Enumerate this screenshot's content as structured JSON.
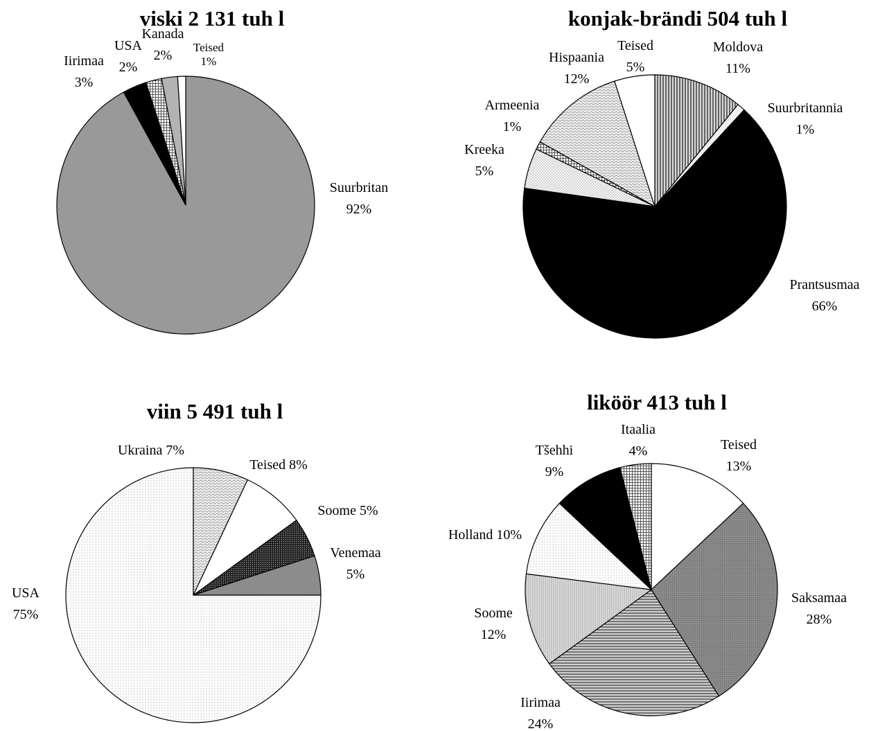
{
  "chart_data": [
    {
      "type": "pie",
      "title": "viski 2 131 tuh l",
      "slices": [
        {
          "lines": [
            "Suurbritan",
            "92%"
          ],
          "value": 92,
          "fill": "#999999"
        },
        {
          "lines": [
            "Iirimaa",
            "3%"
          ],
          "value": 3,
          "fill": "#000000"
        },
        {
          "lines": [
            "USA",
            "2%"
          ],
          "value": 2,
          "fill": "pat-grid"
        },
        {
          "lines": [
            "Kanada",
            "2%"
          ],
          "value": 2,
          "fill": "#b3b3b3"
        },
        {
          "lines": [
            "Teised",
            "1%"
          ],
          "value": 1,
          "fill": "#ffffff"
        }
      ]
    },
    {
      "type": "pie",
      "title": "konjak-brändi 504 tuh l",
      "slices": [
        {
          "lines": [
            "Moldova",
            "11%"
          ],
          "value": 11,
          "fill": "pat-vstripe"
        },
        {
          "lines": [
            "Suurbritannia",
            "1%"
          ],
          "value": 1,
          "fill": "#f0f0f0"
        },
        {
          "lines": [
            "Prantsusmaa",
            "66%"
          ],
          "value": 66,
          "fill": "#000000"
        },
        {
          "lines": [
            "Kreeka",
            "5%"
          ],
          "value": 5,
          "fill": "pat-light"
        },
        {
          "lines": [
            "Armeenia",
            "1%"
          ],
          "value": 1,
          "fill": "pat-grid"
        },
        {
          "lines": [
            "Hispaania",
            "12%"
          ],
          "value": 12,
          "fill": "pat-wave"
        },
        {
          "lines": [
            "Teised",
            "5%"
          ],
          "value": 5,
          "fill": "#ffffff"
        }
      ]
    },
    {
      "type": "pie",
      "title": "viin 5 491 tuh l",
      "slices": [
        {
          "lines": [
            "Ukraina 7%"
          ],
          "value": 7,
          "fill": "pat-wave"
        },
        {
          "lines": [
            "Teised 8%"
          ],
          "value": 8,
          "fill": "#ffffff"
        },
        {
          "lines": [
            "Soome 5%"
          ],
          "value": 5,
          "fill": "pat-dark"
        },
        {
          "lines": [
            "Venemaa",
            "5%"
          ],
          "value": 5,
          "fill": "#8c8c8c"
        },
        {
          "lines": [
            "USA",
            "75%"
          ],
          "value": 75,
          "fill": "pat-dots"
        }
      ]
    },
    {
      "type": "pie",
      "title": "liköör 413 tuh l",
      "slices": [
        {
          "lines": [
            "Teised",
            "13%"
          ],
          "value": 13,
          "fill": "#ffffff"
        },
        {
          "lines": [
            "Saksamaa",
            "28%"
          ],
          "value": 28,
          "fill": "pat-medium"
        },
        {
          "lines": [
            "Iirimaa",
            "24%"
          ],
          "value": 24,
          "fill": "pat-hstripe"
        },
        {
          "lines": [
            "Soome",
            "12%"
          ],
          "value": 12,
          "fill": "pat-vlight"
        },
        {
          "lines": [
            "Holland 10%"
          ],
          "value": 10,
          "fill": "pat-dots"
        },
        {
          "lines": [
            "Tšehhi",
            "9%"
          ],
          "value": 9,
          "fill": "#000000"
        },
        {
          "lines": [
            "Itaalia",
            "4%"
          ],
          "value": 4,
          "fill": "pat-grid"
        }
      ]
    }
  ]
}
